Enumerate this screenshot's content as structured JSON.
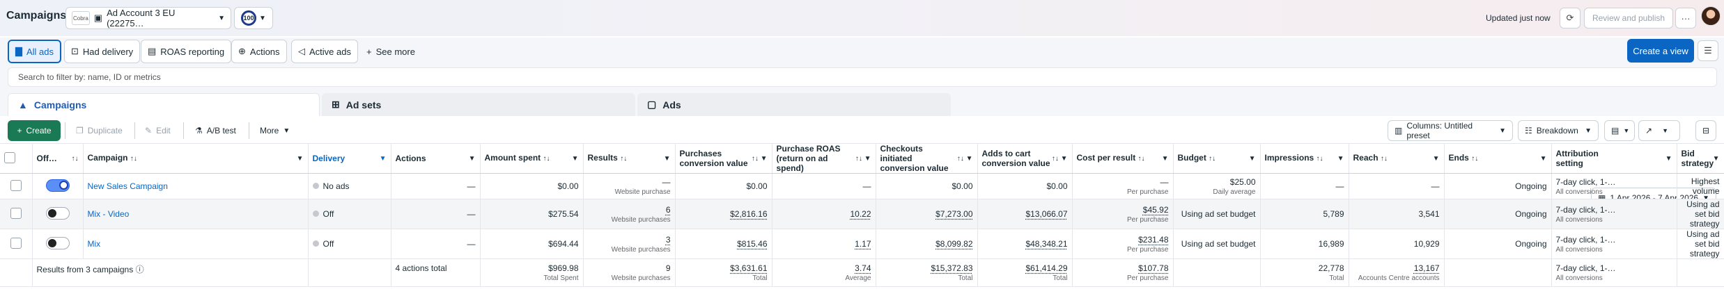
{
  "header": {
    "title": "Campaigns",
    "account_name": "Ad Account 3 EU (22275…",
    "account_logo_text": "Cobra",
    "score": "100",
    "updated": "Updated just now",
    "review_publish": "Review and publish",
    "more": "···"
  },
  "views": {
    "items": [
      "All ads",
      "Had delivery",
      "ROAS reporting",
      "Actions",
      "Active ads"
    ],
    "see_more": "See more",
    "create_view": "Create a view"
  },
  "filter": {
    "placeholder": "Search to filter by: name, ID or metrics"
  },
  "tabs": {
    "items": [
      "Campaigns",
      "Ad sets",
      "Ads"
    ],
    "date_range": "1 Apr 2026 - 7 Apr 2026"
  },
  "toolbar": {
    "create": "Create",
    "duplicate": "Duplicate",
    "edit": "Edit",
    "ab_test": "A/B test",
    "more": "More",
    "columns": "Columns: Untitled preset",
    "breakdown": "Breakdown"
  },
  "table": {
    "headers": [
      "Off…",
      "Campaign",
      "Delivery",
      "Actions",
      "Amount spent",
      "Results",
      "Purchases conversion value",
      "Purchase ROAS (return on ad spend)",
      "Checkouts initiated conversion value",
      "Adds to cart conversion value",
      "Cost per result",
      "Budget",
      "Impressions",
      "Reach",
      "Ends",
      "Attribution setting",
      "Bid strategy"
    ],
    "rows": [
      {
        "campaign": "New Sales Campaign",
        "delivery": "No ads",
        "actions": "—",
        "amount_spent": "$0.00",
        "results": "—",
        "results_sub": "Website purchase",
        "purchases_value": "$0.00",
        "roas": "—",
        "checkouts": "$0.00",
        "adds_to_cart": "$0.00",
        "cost_per_result": "—",
        "cpr_sub": "Per purchase",
        "budget": "$25.00",
        "budget_sub": "Daily average",
        "impressions": "—",
        "reach": "—",
        "ends": "Ongoing",
        "attribution": "7-day click, 1-…",
        "attribution_sub": "All conversions",
        "bid_strategy": "Highest volume",
        "on": true
      },
      {
        "campaign": "Mix - Video",
        "delivery": "Off",
        "actions": "—",
        "amount_spent": "$275.54",
        "results": "6",
        "results_sub": "Website purchases",
        "purchases_value": "$2,816.16",
        "roas": "10.22",
        "checkouts": "$7,273.00",
        "adds_to_cart": "$13,066.07",
        "cost_per_result": "$45.92",
        "cpr_sub": "Per purchase",
        "budget": "Using ad set budget",
        "budget_sub": "",
        "impressions": "5,789",
        "reach": "3,541",
        "ends": "Ongoing",
        "attribution": "7-day click, 1-…",
        "attribution_sub": "All conversions",
        "bid_strategy": "Using ad set bid strategy",
        "on": false
      },
      {
        "campaign": "Mix",
        "delivery": "Off",
        "actions": "—",
        "amount_spent": "$694.44",
        "results": "3",
        "results_sub": "Website purchases",
        "purchases_value": "$815.46",
        "roas": "1.17",
        "checkouts": "$8,099.82",
        "adds_to_cart": "$48,348.21",
        "cost_per_result": "$231.48",
        "cpr_sub": "Per purchase",
        "budget": "Using ad set budget",
        "budget_sub": "",
        "impressions": "16,989",
        "reach": "10,929",
        "ends": "Ongoing",
        "attribution": "7-day click, 1-…",
        "attribution_sub": "All conversions",
        "bid_strategy": "Using ad set bid strategy",
        "on": false
      }
    ],
    "totals": {
      "label": "Results from 3 campaigns",
      "actions": "4 actions total",
      "amount_spent": "$969.98",
      "amount_spent_sub": "Total Spent",
      "results": "9",
      "results_sub": "Website purchases",
      "purchases_value": "$3,631.61",
      "purchases_value_sub": "Total",
      "roas": "3.74",
      "roas_sub": "Average",
      "checkouts": "$15,372.83",
      "checkouts_sub": "Total",
      "adds_to_cart": "$61,414.29",
      "adds_to_cart_sub": "Total",
      "cost_per_result": "$107.78",
      "cpr_sub": "Per purchase",
      "impressions": "22,778",
      "impressions_sub": "Total",
      "reach": "13,167",
      "reach_sub": "Accounts Centre accounts",
      "attribution": "7-day click, 1-…",
      "attribution_sub": "All conversions"
    }
  }
}
